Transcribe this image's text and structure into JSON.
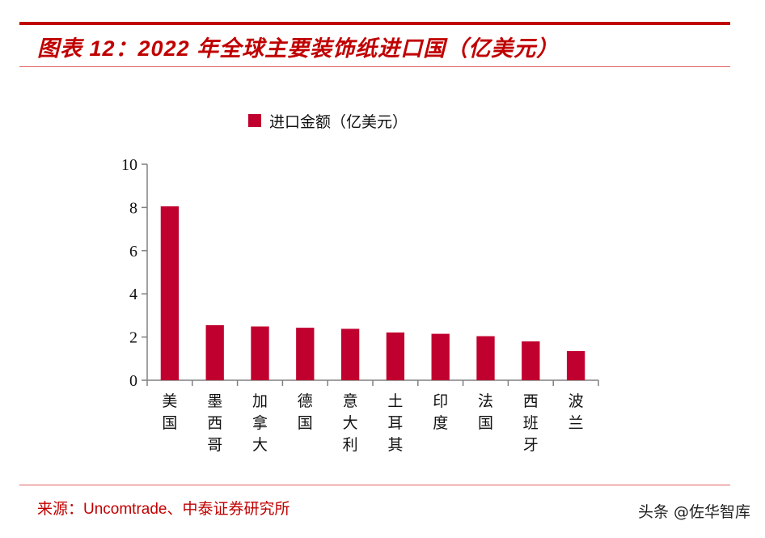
{
  "header": {
    "title": "图表 12：2022 年全球主要装饰纸进口国（亿美元）"
  },
  "footer": {
    "source": "来源：Uncomtrade、中泰证券研究所",
    "watermark": "头条 @佐华智库"
  },
  "colors": {
    "accent": "#c00000",
    "bar": "#c0002e",
    "axis": "#808080"
  },
  "chart_data": {
    "type": "bar",
    "title": "",
    "xlabel": "",
    "ylabel": "",
    "categories": [
      "美国",
      "墨西哥",
      "加拿大",
      "德国",
      "意大利",
      "土耳其",
      "印度",
      "法国",
      "西班牙",
      "波兰"
    ],
    "series": [
      {
        "name": "进口金额（亿美元）",
        "values": [
          8.05,
          2.55,
          2.49,
          2.43,
          2.38,
          2.21,
          2.15,
          2.04,
          1.8,
          1.35
        ]
      }
    ],
    "ylim": [
      0,
      10
    ],
    "yticks": [
      0,
      2,
      4,
      6,
      8,
      10
    ],
    "grid": false,
    "legend": "top-center",
    "category_label_orientation": "vertical"
  }
}
